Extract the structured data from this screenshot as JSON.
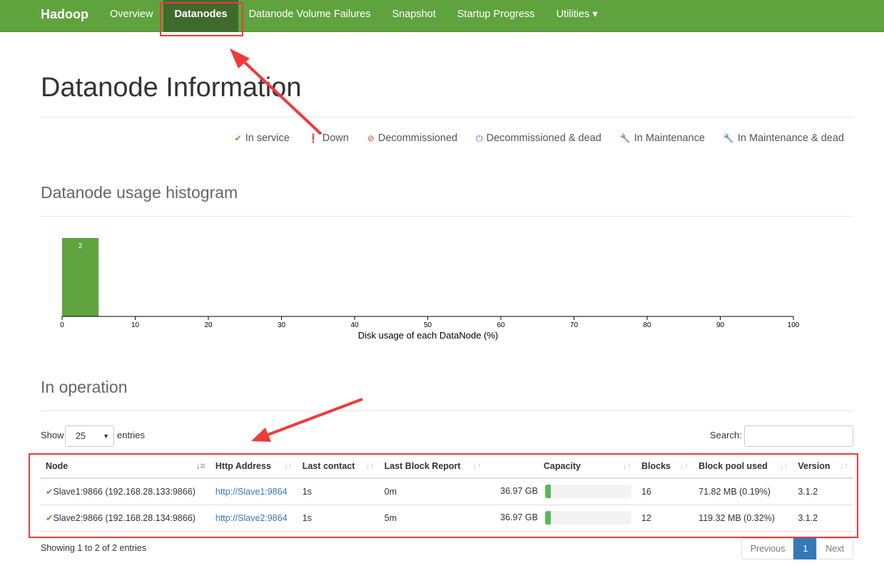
{
  "nav": {
    "brand": "Hadoop",
    "items": [
      "Overview",
      "Datanodes",
      "Datanode Volume Failures",
      "Snapshot",
      "Startup Progress",
      "Utilities ▾"
    ]
  },
  "title": "Datanode Information",
  "legend": [
    {
      "icon": "check-icon",
      "glyph": "✔",
      "color": "#5fa33e",
      "label": "In service"
    },
    {
      "icon": "exclamation-circle-icon",
      "glyph": "❗",
      "color": "#c7254e",
      "label": "Down"
    },
    {
      "icon": "ban-icon",
      "glyph": "⊘",
      "color": "#c0592b",
      "label": "Decommissioned"
    },
    {
      "icon": "power-icon",
      "glyph": "⏻",
      "color": "#337ab7",
      "label": "Decommissioned & dead"
    },
    {
      "icon": "wrench-icon",
      "glyph": "🔧",
      "color": "#f0ad4e",
      "label": "In Maintenance"
    },
    {
      "icon": "wrench-icon",
      "glyph": "🔧",
      "color": "#c7254e",
      "label": "In Maintenance & dead"
    }
  ],
  "histogram_title": "Datanode usage histogram",
  "chart_data": {
    "type": "bar",
    "bins": [
      [
        0,
        5
      ]
    ],
    "values": [
      2
    ],
    "xlabel": "Disk usage of each DataNode (%)",
    "xlim": [
      0,
      100
    ],
    "xticks": [
      "0",
      "10",
      "20",
      "30",
      "40",
      "50",
      "60",
      "70",
      "80",
      "90",
      "100"
    ],
    "color": "#5fa33e"
  },
  "operation": {
    "title": "In operation",
    "show": "Show",
    "entries": "entries",
    "page_size": "25",
    "search": "Search:",
    "columns": [
      "Node",
      "Http Address",
      "Last contact",
      "Last Block Report",
      "Capacity",
      "Blocks",
      "Block pool used",
      "Version"
    ],
    "rows": [
      {
        "node": "Slave1:9866 (192.168.28.133:9866)",
        "http": "http://Slave1:9864",
        "contact": "1s",
        "report": "0m",
        "capacity": "36.97 GB",
        "used_pct": 0.19,
        "blocks": "16",
        "pool": "71.82 MB (0.19%)",
        "version": "3.1.2"
      },
      {
        "node": "Slave2:9866 (192.168.28.134:9866)",
        "http": "http://Slave2:9864",
        "contact": "1s",
        "report": "5m",
        "capacity": "36.97 GB",
        "used_pct": 0.32,
        "blocks": "12",
        "pool": "119.32 MB (0.32%)",
        "version": "3.1.2"
      }
    ],
    "info": "Showing 1 to 2 of 2 entries",
    "prev": "Previous",
    "page": "1",
    "next": "Next"
  }
}
